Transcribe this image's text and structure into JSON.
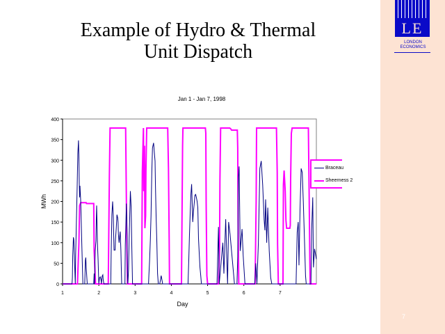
{
  "slide": {
    "title_line1": "Example of Hydro & Thermal",
    "title_line2": "Unit Dispatch",
    "number": "7"
  },
  "logo": {
    "letters": "LE",
    "line1": "LONDON",
    "line2": "ECONOMICS"
  },
  "colors": {
    "strip": "#fde3d3",
    "logo_blue": "#0a0ac8",
    "braceau": "#000080",
    "sheerness": "#ff00ff"
  },
  "chart_data": {
    "type": "line",
    "title": "Jan 1 - Jan 7, 1998",
    "xlabel": "Day",
    "ylabel": "MWh",
    "xlim": [
      1,
      8
    ],
    "ylim": [
      0,
      400
    ],
    "xticks": [
      1,
      2,
      3,
      4,
      5,
      6,
      7
    ],
    "yticks": [
      0,
      50,
      100,
      150,
      200,
      250,
      300,
      350,
      400
    ],
    "grid": false,
    "legend": "right",
    "series": [
      {
        "name": "Braceau",
        "color": "#000080",
        "points": [
          [
            1,
            0
          ],
          [
            1.26,
            0
          ],
          [
            1.27,
            15
          ],
          [
            1.28,
            68
          ],
          [
            1.3,
            113
          ],
          [
            1.31,
            107
          ],
          [
            1.33,
            55
          ],
          [
            1.35,
            0
          ],
          [
            1.36,
            70
          ],
          [
            1.38,
            145
          ],
          [
            1.4,
            228
          ],
          [
            1.42,
            315
          ],
          [
            1.44,
            348
          ],
          [
            1.45,
            308
          ],
          [
            1.46,
            245
          ],
          [
            1.47,
            210
          ],
          [
            1.48,
            238
          ],
          [
            1.5,
            200
          ],
          [
            1.53,
            100
          ],
          [
            1.56,
            0
          ],
          [
            1.61,
            0
          ],
          [
            1.62,
            25
          ],
          [
            1.63,
            57
          ],
          [
            1.64,
            64
          ],
          [
            1.65,
            42
          ],
          [
            1.67,
            15
          ],
          [
            1.68,
            0
          ],
          [
            1.86,
            0
          ],
          [
            1.87,
            25
          ],
          [
            1.88,
            0
          ],
          [
            1.9,
            80
          ],
          [
            1.92,
            105
          ],
          [
            1.93,
            160
          ],
          [
            1.94,
            190
          ],
          [
            1.96,
            100
          ],
          [
            1.98,
            58
          ],
          [
            2.0,
            0
          ],
          [
            2.02,
            15
          ],
          [
            2.04,
            17
          ],
          [
            2.06,
            10
          ],
          [
            2.07,
            0
          ],
          [
            2.09,
            18
          ],
          [
            2.11,
            22
          ],
          [
            2.12,
            10
          ],
          [
            2.14,
            0
          ],
          [
            2.33,
            0
          ],
          [
            2.34,
            75
          ],
          [
            2.36,
            168
          ],
          [
            2.38,
            200
          ],
          [
            2.4,
            160
          ],
          [
            2.42,
            82
          ],
          [
            2.45,
            82
          ],
          [
            2.46,
            108
          ],
          [
            2.48,
            135
          ],
          [
            2.5,
            168
          ],
          [
            2.52,
            160
          ],
          [
            2.53,
            150
          ],
          [
            2.54,
            120
          ],
          [
            2.56,
            100
          ],
          [
            2.58,
            120
          ],
          [
            2.59,
            127
          ],
          [
            2.61,
            80
          ],
          [
            2.62,
            35
          ],
          [
            2.63,
            0
          ],
          [
            2.72,
            0
          ],
          [
            2.73,
            95
          ],
          [
            2.76,
            195
          ],
          [
            2.78,
            118
          ],
          [
            2.79,
            28
          ],
          [
            2.8,
            0
          ],
          [
            2.82,
            35
          ],
          [
            2.84,
            120
          ],
          [
            2.87,
            225
          ],
          [
            2.89,
            187
          ],
          [
            2.91,
            87
          ],
          [
            2.93,
            0
          ],
          [
            3.37,
            0
          ],
          [
            3.38,
            20
          ],
          [
            3.4,
            55
          ],
          [
            3.42,
            105
          ],
          [
            3.44,
            165
          ],
          [
            3.46,
            268
          ],
          [
            3.48,
            330
          ],
          [
            3.51,
            342
          ],
          [
            3.53,
            320
          ],
          [
            3.55,
            298
          ],
          [
            3.56,
            245
          ],
          [
            3.58,
            165
          ],
          [
            3.6,
            100
          ],
          [
            3.62,
            25
          ],
          [
            3.64,
            0
          ],
          [
            3.68,
            0
          ],
          [
            3.7,
            10
          ],
          [
            3.72,
            20
          ],
          [
            3.74,
            10
          ],
          [
            3.76,
            0
          ],
          [
            4.46,
            0
          ],
          [
            4.48,
            58
          ],
          [
            4.5,
            120
          ],
          [
            4.52,
            170
          ],
          [
            4.54,
            218
          ],
          [
            4.56,
            242
          ],
          [
            4.58,
            178
          ],
          [
            4.59,
            150
          ],
          [
            4.61,
            175
          ],
          [
            4.63,
            195
          ],
          [
            4.65,
            215
          ],
          [
            4.67,
            217
          ],
          [
            4.69,
            210
          ],
          [
            4.71,
            200
          ],
          [
            4.73,
            185
          ],
          [
            4.75,
            110
          ],
          [
            4.77,
            72
          ],
          [
            4.79,
            40
          ],
          [
            4.81,
            20
          ],
          [
            4.83,
            0
          ],
          [
            5.26,
            0
          ],
          [
            5.28,
            73
          ],
          [
            5.3,
            138
          ],
          [
            5.32,
            0
          ],
          [
            5.38,
            60
          ],
          [
            5.42,
            100
          ],
          [
            5.45,
            25
          ],
          [
            5.5,
            157
          ],
          [
            5.53,
            60
          ],
          [
            5.55,
            0
          ],
          [
            5.58,
            150
          ],
          [
            5.62,
            120
          ],
          [
            5.66,
            80
          ],
          [
            5.7,
            40
          ],
          [
            5.74,
            0
          ],
          [
            5.81,
            0
          ],
          [
            5.83,
            65
          ],
          [
            5.85,
            260
          ],
          [
            5.87,
            285
          ],
          [
            5.9,
            80
          ],
          [
            5.95,
            133
          ],
          [
            5.98,
            70
          ],
          [
            6.03,
            0
          ],
          [
            6.3,
            0
          ],
          [
            6.33,
            50
          ],
          [
            6.36,
            0
          ],
          [
            6.4,
            100
          ],
          [
            6.44,
            280
          ],
          [
            6.48,
            298
          ],
          [
            6.52,
            240
          ],
          [
            6.56,
            155
          ],
          [
            6.58,
            130
          ],
          [
            6.6,
            205
          ],
          [
            6.63,
            100
          ],
          [
            6.66,
            185
          ],
          [
            6.7,
            80
          ],
          [
            6.74,
            15
          ],
          [
            6.77,
            0
          ],
          [
            7.44,
            0
          ],
          [
            7.47,
            125
          ],
          [
            7.5,
            150
          ],
          [
            7.52,
            45
          ],
          [
            7.55,
            180
          ],
          [
            7.58,
            280
          ],
          [
            7.61,
            270
          ],
          [
            7.64,
            200
          ],
          [
            7.68,
            85
          ],
          [
            7.7,
            20
          ],
          [
            7.72,
            0
          ],
          [
            7.85,
            0
          ],
          [
            7.87,
            130
          ],
          [
            7.9,
            210
          ],
          [
            7.92,
            40
          ],
          [
            7.95,
            85
          ],
          [
            8.0,
            60
          ]
        ]
      },
      {
        "name": "Sheerness 2",
        "color": "#ff00ff",
        "points": [
          [
            1,
            0
          ],
          [
            1.41,
            0
          ],
          [
            1.45,
            100
          ],
          [
            1.47,
            190
          ],
          [
            1.5,
            197
          ],
          [
            1.65,
            197
          ],
          [
            1.66,
            195
          ],
          [
            1.86,
            195
          ],
          [
            1.87,
            80
          ],
          [
            1.91,
            0
          ],
          [
            2.26,
            0
          ],
          [
            2.29,
            262
          ],
          [
            2.31,
            378
          ],
          [
            2.74,
            378
          ],
          [
            2.75,
            280
          ],
          [
            2.77,
            110
          ],
          [
            2.79,
            0
          ],
          [
            3.18,
            0
          ],
          [
            3.2,
            272
          ],
          [
            3.23,
            378
          ],
          [
            3.24,
            225
          ],
          [
            3.26,
            335
          ],
          [
            3.27,
            135
          ],
          [
            3.29,
            165
          ],
          [
            3.3,
            275
          ],
          [
            3.32,
            378
          ],
          [
            3.9,
            378
          ],
          [
            3.92,
            280
          ],
          [
            3.94,
            110
          ],
          [
            3.95,
            0
          ],
          [
            4.28,
            0
          ],
          [
            4.31,
            335
          ],
          [
            4.32,
            378
          ],
          [
            4.94,
            378
          ],
          [
            4.95,
            365
          ],
          [
            4.96,
            195
          ],
          [
            4.98,
            20
          ],
          [
            5.0,
            0
          ],
          [
            5.3,
            0
          ],
          [
            5.33,
            85
          ],
          [
            5.34,
            250
          ],
          [
            5.36,
            378
          ],
          [
            5.61,
            378
          ],
          [
            5.64,
            376
          ],
          [
            5.66,
            373
          ],
          [
            5.82,
            373
          ],
          [
            5.83,
            330
          ],
          [
            5.84,
            155
          ],
          [
            5.86,
            0
          ],
          [
            6.31,
            0
          ],
          [
            6.34,
            200
          ],
          [
            6.35,
            378
          ],
          [
            6.9,
            378
          ],
          [
            6.92,
            270
          ],
          [
            6.93,
            97
          ],
          [
            6.95,
            0
          ],
          [
            7.08,
            0
          ],
          [
            7.09,
            240
          ],
          [
            7.11,
            275
          ],
          [
            7.14,
            225
          ],
          [
            7.16,
            155
          ],
          [
            7.18,
            135
          ],
          [
            7.27,
            135
          ],
          [
            7.28,
            142
          ],
          [
            7.29,
            255
          ],
          [
            7.31,
            365
          ],
          [
            7.33,
            378
          ],
          [
            7.78,
            378
          ],
          [
            7.8,
            220
          ],
          [
            7.82,
            55
          ],
          [
            7.83,
            0
          ],
          [
            8.0,
            0
          ]
        ]
      }
    ]
  }
}
